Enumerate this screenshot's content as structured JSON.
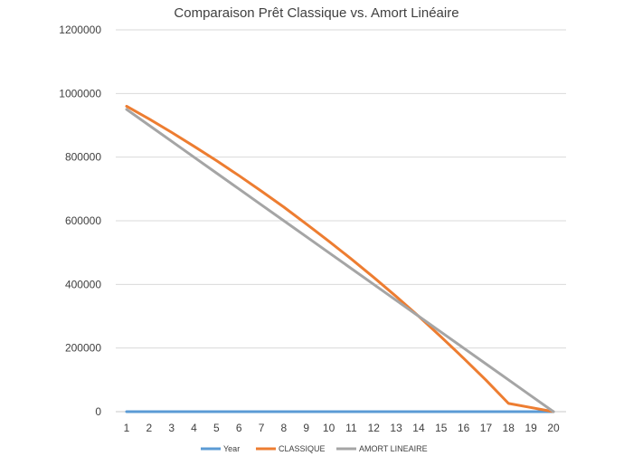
{
  "chart_data": {
    "type": "line",
    "title": "Comparaison Prêt Classique vs. Amort Linéaire",
    "xlabel": "",
    "ylabel": "",
    "categories": [
      "1",
      "2",
      "3",
      "4",
      "5",
      "6",
      "7",
      "8",
      "9",
      "10",
      "11",
      "12",
      "13",
      "14",
      "15",
      "16",
      "17",
      "18",
      "19",
      "20"
    ],
    "ylim": [
      0,
      1200000
    ],
    "yticks": [
      0,
      200000,
      400000,
      600000,
      800000,
      1000000,
      1200000
    ],
    "ytick_labels": [
      "0",
      "200000",
      "400000",
      "600000",
      "800000",
      "1000000",
      "1200000"
    ],
    "grid": true,
    "legend_position": "bottom",
    "series": [
      {
        "name": "Year",
        "color": "#5b9bd5",
        "values": [
          1,
          2,
          3,
          4,
          5,
          6,
          7,
          8,
          9,
          10,
          11,
          12,
          13,
          14,
          15,
          16,
          17,
          18,
          19,
          20
        ]
      },
      {
        "name": "CLASSIQUE",
        "color": "#ed7d31",
        "values": [
          960000,
          920000,
          878000,
          834000,
          789000,
          742000,
          693000,
          643000,
          590000,
          536000,
          480000,
          422000,
          362000,
          300000,
          235000,
          168000,
          99000,
          26000,
          13000,
          0
        ]
      },
      {
        "name": "AMORT LINEAIRE",
        "color": "#a5a5a5",
        "values": [
          950000,
          900000,
          850000,
          800000,
          750000,
          700000,
          650000,
          600000,
          550000,
          500000,
          450000,
          400000,
          350000,
          300000,
          250000,
          200000,
          150000,
          100000,
          50000,
          0
        ]
      }
    ]
  }
}
